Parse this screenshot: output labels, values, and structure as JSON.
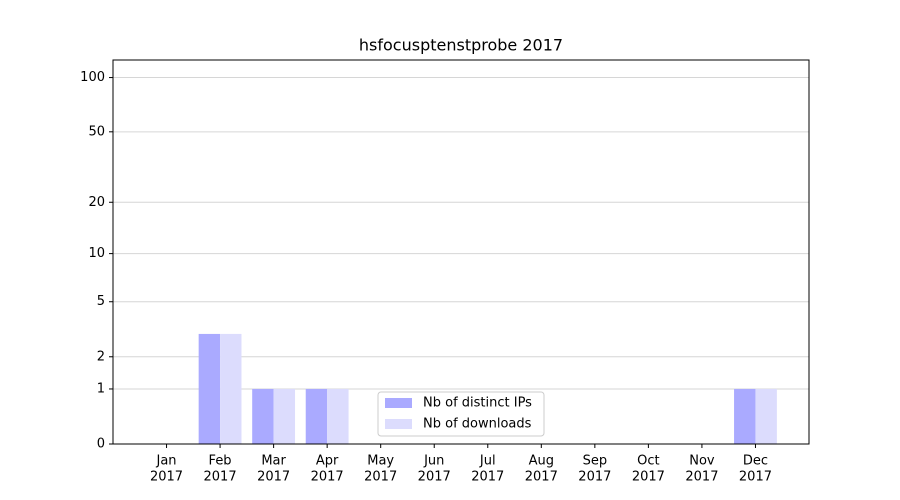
{
  "chart_data": {
    "type": "bar",
    "title": "hsfocusptenstprobe 2017",
    "categories": [
      [
        "Jan",
        "2017"
      ],
      [
        "Feb",
        "2017"
      ],
      [
        "Mar",
        "2017"
      ],
      [
        "Apr",
        "2017"
      ],
      [
        "May",
        "2017"
      ],
      [
        "Jun",
        "2017"
      ],
      [
        "Jul",
        "2017"
      ],
      [
        "Aug",
        "2017"
      ],
      [
        "Sep",
        "2017"
      ],
      [
        "Oct",
        "2017"
      ],
      [
        "Nov",
        "2017"
      ],
      [
        "Dec",
        "2017"
      ]
    ],
    "series": [
      {
        "name": "Nb of distinct IPs",
        "color": "#aaaaff",
        "values": [
          0,
          3,
          1,
          1,
          0,
          0,
          0,
          0,
          0,
          0,
          0,
          1
        ]
      },
      {
        "name": "Nb of downloads",
        "color": "#dcdcfd",
        "values": [
          0,
          3,
          1,
          1,
          0,
          0,
          0,
          0,
          0,
          0,
          0,
          1
        ]
      }
    ],
    "y_scale": "log1p",
    "ylim": [
      0,
      125
    ],
    "yticks": [
      0,
      1,
      2,
      5,
      10,
      20,
      50,
      100
    ],
    "grid": true,
    "legend": "lower center"
  }
}
